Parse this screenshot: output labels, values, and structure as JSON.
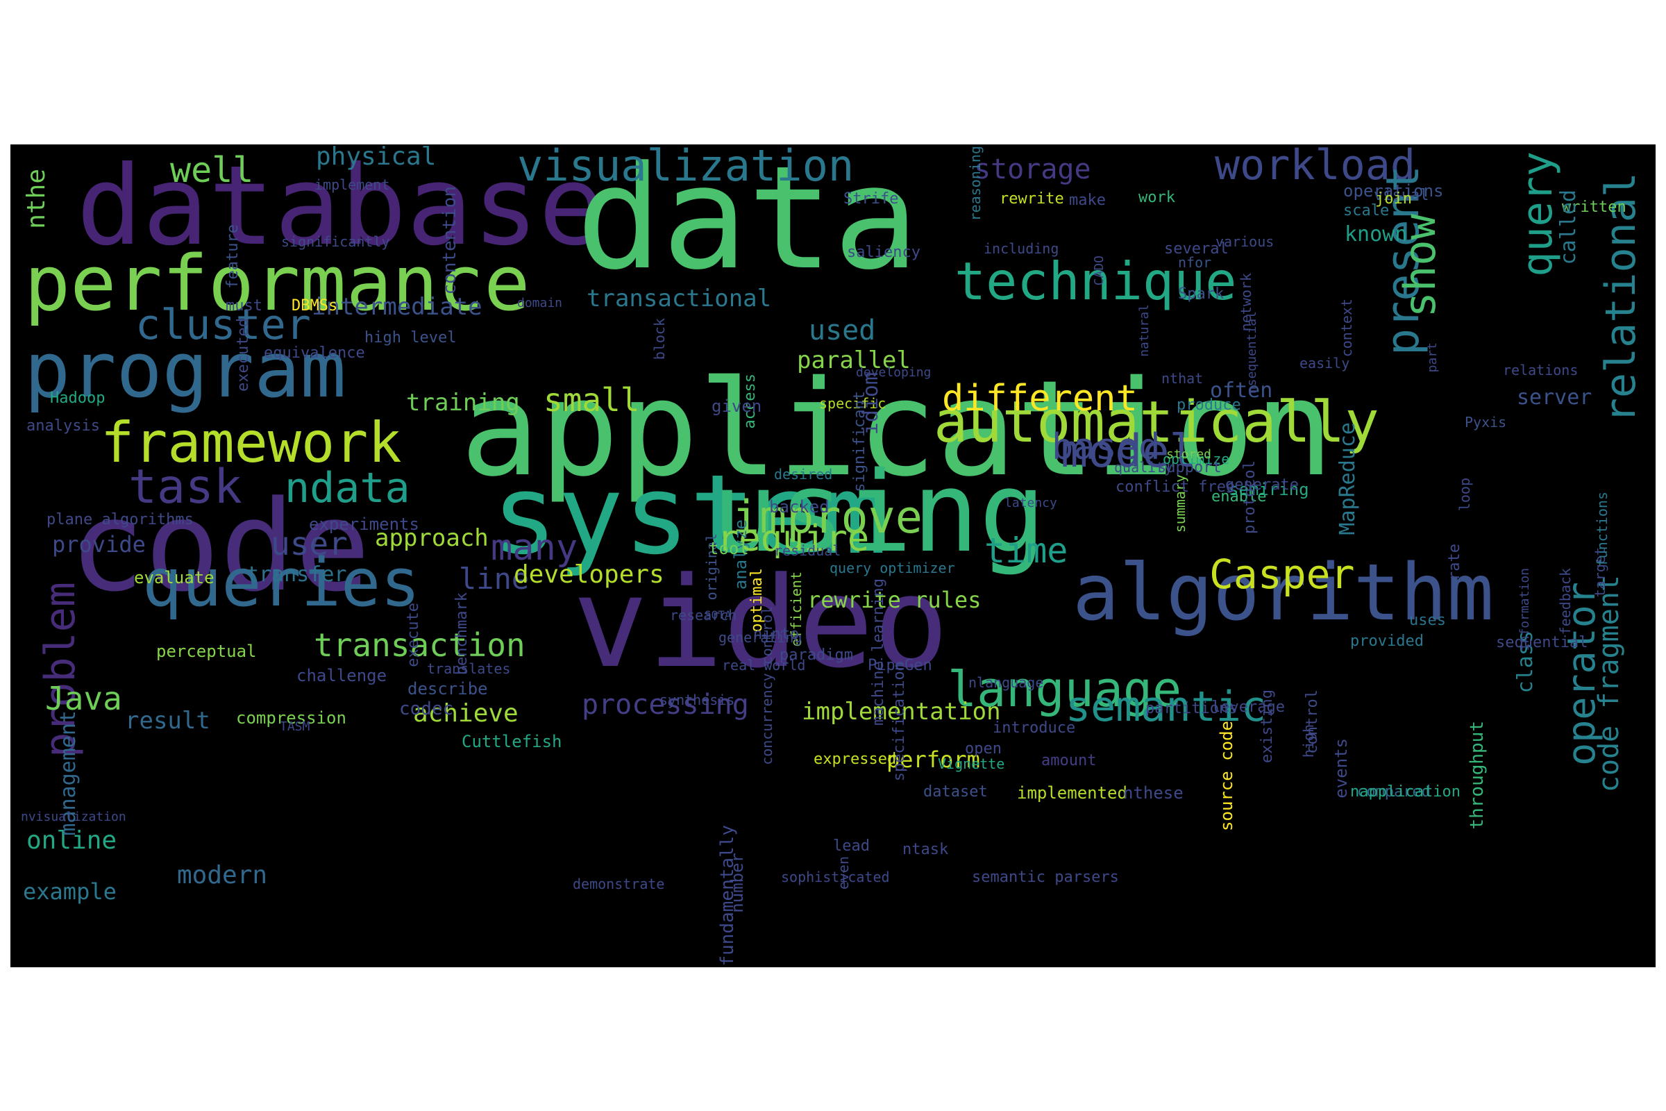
{
  "palette": {
    "dark_purple": "#482475",
    "purple": "#472c7a",
    "indigo": "#3e4989",
    "blue": "#31688e",
    "teal": "#26828e",
    "aqua": "#1f9e89",
    "green": "#35b779",
    "light_green": "#6ece58",
    "lime": "#b5de2b",
    "yellow": "#fde725",
    "background": "#000000"
  },
  "words": [
    {
      "text": "database",
      "color": "#482475"
    },
    {
      "text": "data",
      "color": "#4ac16d"
    },
    {
      "text": "application",
      "color": "#4ac16d"
    },
    {
      "text": "system",
      "color": "#22a884"
    },
    {
      "text": "video",
      "color": "#472c7a"
    },
    {
      "text": "using",
      "color": "#35b779"
    },
    {
      "text": "code",
      "color": "#472c7a"
    },
    {
      "text": "performance",
      "color": "#7ad151"
    },
    {
      "text": "program",
      "color": "#31688e"
    },
    {
      "text": "algorithm",
      "color": "#3b528b"
    },
    {
      "text": "queries",
      "color": "#31688e"
    },
    {
      "text": "automatically",
      "color": "#a0da39"
    },
    {
      "text": "visualization",
      "color": "#2a788e"
    },
    {
      "text": "technique",
      "color": "#22a884"
    },
    {
      "text": "framework",
      "color": "#b5de2b"
    },
    {
      "text": "language",
      "color": "#35b779"
    },
    {
      "text": "improve",
      "color": "#7ad151"
    },
    {
      "text": "workload",
      "color": "#3e4989"
    },
    {
      "text": "cluster",
      "color": "#31688e"
    },
    {
      "text": "task",
      "color": "#443a83"
    },
    {
      "text": "semantic",
      "color": "#21918c"
    },
    {
      "text": "Casper",
      "color": "#c8e020"
    },
    {
      "text": "model",
      "color": "#3e4989"
    },
    {
      "text": "query",
      "color": "#1f9e89"
    },
    {
      "text": "relational",
      "color": "#26828e"
    },
    {
      "text": "present",
      "color": "#2a788e"
    },
    {
      "text": "show",
      "color": "#4ac16d"
    },
    {
      "text": "ndata",
      "color": "#1f9e89"
    },
    {
      "text": "problem",
      "color": "#472c7a"
    },
    {
      "text": "operator",
      "color": "#26828e"
    },
    {
      "text": "require",
      "color": "#86d549"
    },
    {
      "text": "different",
      "color": "#fde725"
    },
    {
      "text": "based",
      "color": "#3e4989"
    },
    {
      "text": "many",
      "color": "#443a83"
    },
    {
      "text": "time",
      "color": "#1f9e89"
    },
    {
      "text": "well",
      "color": "#6ece58"
    },
    {
      "text": "transaction",
      "color": "#6ece58"
    },
    {
      "text": "small",
      "color": "#a0da39"
    },
    {
      "text": "processing",
      "color": "#433e85"
    },
    {
      "text": "storage",
      "color": "#443a83"
    },
    {
      "text": "user",
      "color": "#3e4989"
    },
    {
      "text": "Java",
      "color": "#6ece58"
    },
    {
      "text": "line",
      "color": "#3e4989"
    },
    {
      "text": "code fragment",
      "color": "#26828e"
    },
    {
      "text": "used",
      "color": "#2a788e"
    },
    {
      "text": "physical",
      "color": "#2a788e"
    },
    {
      "text": "intermediate",
      "color": "#3b528b"
    },
    {
      "text": "transactional",
      "color": "#2a788e"
    },
    {
      "text": "parallel",
      "color": "#86d549"
    },
    {
      "text": "training",
      "color": "#6ece58"
    },
    {
      "text": "developers",
      "color": "#b5de2b"
    },
    {
      "text": "approach",
      "color": "#a0da39"
    },
    {
      "text": "rewrite rules",
      "color": "#86d549"
    },
    {
      "text": "perform",
      "color": "#c8e020"
    },
    {
      "text": "implementation",
      "color": "#a0da39"
    },
    {
      "text": "achieve",
      "color": "#a0da39"
    },
    {
      "text": "online",
      "color": "#22a884"
    },
    {
      "text": "modern",
      "color": "#31688e"
    },
    {
      "text": "example",
      "color": "#2a788e"
    },
    {
      "text": "result",
      "color": "#31688e"
    },
    {
      "text": "provide",
      "color": "#3e4989"
    },
    {
      "text": "transfer",
      "color": "#2c728e"
    },
    {
      "text": "management",
      "color": "#31688e"
    },
    {
      "text": "known",
      "color": "#1f9e89"
    },
    {
      "text": "often",
      "color": "#3b528b"
    },
    {
      "text": "server",
      "color": "#3b528b"
    },
    {
      "text": "MapReduce",
      "color": "#2a788e"
    },
    {
      "text": "class",
      "color": "#26828e"
    },
    {
      "text": "throughput",
      "color": "#35b779"
    },
    {
      "text": "nthe",
      "color": "#6ece58"
    },
    {
      "text": "experiments",
      "color": "#3e4989"
    },
    {
      "text": "plane algorithms",
      "color": "#3e4989"
    },
    {
      "text": "analysis",
      "color": "#3e4989"
    },
    {
      "text": "Hadoop",
      "color": "#22a884"
    },
    {
      "text": "evaluate",
      "color": "#a0da39"
    },
    {
      "text": "perceptual",
      "color": "#86d549"
    },
    {
      "text": "challenge",
      "color": "#3e4989"
    },
    {
      "text": "compression",
      "color": "#7ad151"
    },
    {
      "text": "Cuttlefish",
      "color": "#22a884"
    },
    {
      "text": "TASM",
      "color": "#3e4989"
    },
    {
      "text": "describe",
      "color": "#3b528b"
    },
    {
      "text": "leverage",
      "color": "#3e4989"
    },
    {
      "text": "partitions",
      "color": "#3e4989"
    },
    {
      "text": "expressed",
      "color": "#c8e020"
    },
    {
      "text": "implemented",
      "color": "#b5de2b"
    },
    {
      "text": "dataset",
      "color": "#3b528b"
    },
    {
      "text": "amount",
      "color": "#433e85"
    },
    {
      "text": "Vignette",
      "color": "#22a884"
    },
    {
      "text": "nthese",
      "color": "#3e4989"
    },
    {
      "text": "compared",
      "color": "#31688e"
    },
    {
      "text": "napplication",
      "color": "#22a884"
    },
    {
      "text": "provided",
      "color": "#2a788e"
    },
    {
      "text": "uses",
      "color": "#2c728e"
    },
    {
      "text": "sequential",
      "color": "#3e4989"
    },
    {
      "text": "information",
      "color": "#3e4989"
    },
    {
      "text": "feedback",
      "color": "#3e4989"
    },
    {
      "text": "target",
      "color": "#3e4989"
    },
    {
      "text": "functions",
      "color": "#2a788e"
    },
    {
      "text": "written",
      "color": "#6ece58"
    },
    {
      "text": "called",
      "color": "#2a788e"
    },
    {
      "text": "operations",
      "color": "#3b528b"
    },
    {
      "text": "scale",
      "color": "#2a788e"
    },
    {
      "text": "visual",
      "color": "#3b528b"
    },
    {
      "text": "join",
      "color": "#b5de2b"
    },
    {
      "text": "work",
      "color": "#35b779"
    },
    {
      "text": "make",
      "color": "#3e4989"
    },
    {
      "text": "rewrite",
      "color": "#c8e020"
    },
    {
      "text": "Strife",
      "color": "#3b528b"
    },
    {
      "text": "several",
      "color": "#3e4989"
    },
    {
      "text": "various",
      "color": "#3e4989"
    },
    {
      "text": "nfor",
      "color": "#3b528b"
    },
    {
      "text": "Spark",
      "color": "#3b528b"
    },
    {
      "text": "easily",
      "color": "#3e4989"
    },
    {
      "text": "relations",
      "color": "#3e4989"
    },
    {
      "text": "Pyxis",
      "color": "#3b528b"
    },
    {
      "text": "enable",
      "color": "#35b779"
    },
    {
      "text": "semiring",
      "color": "#22a884"
    },
    {
      "text": "generate",
      "color": "#3e4989"
    },
    {
      "text": "summary",
      "color": "#7ad151"
    },
    {
      "text": "loop",
      "color": "#3e4989"
    },
    {
      "text": "protocol",
      "color": "#3e4989"
    },
    {
      "text": "optimize",
      "color": "#22a884"
    },
    {
      "text": "support",
      "color": "#3e4989"
    },
    {
      "text": "conflict free",
      "color": "#3e4989"
    },
    {
      "text": "quality",
      "color": "#3e4989"
    },
    {
      "text": "stored",
      "color": "#7ad151"
    },
    {
      "text": "produce",
      "color": "#2a788e"
    },
    {
      "text": "nthat",
      "color": "#3e4989"
    },
    {
      "text": "specific",
      "color": "#b5de2b"
    },
    {
      "text": "desired",
      "color": "#2a788e"
    },
    {
      "text": "significant",
      "color": "#3b528b"
    },
    {
      "text": "access",
      "color": "#35b779"
    },
    {
      "text": "analyze",
      "color": "#2a788e"
    },
    {
      "text": "original",
      "color": "#3b528b"
    },
    {
      "text": "SOTA",
      "color": "#3e4989"
    },
    {
      "text": "residual",
      "color": "#3e4989"
    },
    {
      "text": "query optimizer",
      "color": "#2a788e"
    },
    {
      "text": "efficient",
      "color": "#86d549"
    },
    {
      "text": "optimal",
      "color": "#fde725"
    },
    {
      "text": "developing",
      "color": "#3e4989"
    },
    {
      "text": "domain",
      "color": "#3e4989"
    },
    {
      "text": "given",
      "color": "#3e4989"
    },
    {
      "text": "idiom",
      "color": "#3e4989"
    },
    {
      "text": "backed",
      "color": "#3e4989"
    },
    {
      "text": "tool",
      "color": "#6ece58"
    },
    {
      "text": "high level",
      "color": "#3b528b"
    },
    {
      "text": "must",
      "color": "#3e4989"
    },
    {
      "text": "DBMSs",
      "color": "#fde725"
    },
    {
      "text": "feature",
      "color": "#3b528b"
    },
    {
      "text": "executed",
      "color": "#3e4989"
    },
    {
      "text": "equivalence",
      "color": "#3e4989"
    },
    {
      "text": "significantly",
      "color": "#3e4989"
    },
    {
      "text": "implement",
      "color": "#3e4989"
    },
    {
      "text": "contention",
      "color": "#3e4989"
    },
    {
      "text": "reasoning",
      "color": "#2a788e"
    },
    {
      "text": "saliency",
      "color": "#3e4989"
    },
    {
      "text": "including",
      "color": "#3e4989"
    },
    {
      "text": "block",
      "color": "#3e4989"
    },
    {
      "text": "CADO",
      "color": "#3e4989"
    },
    {
      "text": "natural",
      "color": "#3e4989"
    },
    {
      "text": "context",
      "color": "#3e4989"
    },
    {
      "text": "network",
      "color": "#3e4989"
    },
    {
      "text": "nsequential",
      "color": "#3e4989"
    },
    {
      "text": "part",
      "color": "#3e4989"
    },
    {
      "text": "rate",
      "color": "#3e4989"
    },
    {
      "text": "control",
      "color": "#3e4989"
    },
    {
      "text": "existing",
      "color": "#3e4989"
    },
    {
      "text": "source code",
      "color": "#fde725"
    },
    {
      "text": "high",
      "color": "#3e4989"
    },
    {
      "text": "events",
      "color": "#3e4989"
    },
    {
      "text": "research",
      "color": "#3e4989"
    },
    {
      "text": "generating",
      "color": "#3e4989"
    },
    {
      "text": "synthesis",
      "color": "#3e4989"
    },
    {
      "text": "translates",
      "color": "#3e4989"
    },
    {
      "text": "ninto",
      "color": "#3e4989"
    },
    {
      "text": "paradigm",
      "color": "#3e4989"
    },
    {
      "text": "codec",
      "color": "#3e4989"
    },
    {
      "text": "open",
      "color": "#3e4989"
    },
    {
      "text": "PipeGen",
      "color": "#3e4989"
    },
    {
      "text": "introduce",
      "color": "#3e4989"
    },
    {
      "text": "nlanguage",
      "color": "#3e4989"
    },
    {
      "text": "benchmark",
      "color": "#3e4989"
    },
    {
      "text": "machine learning",
      "color": "#3e4989"
    },
    {
      "text": "specification",
      "color": "#3e4989"
    },
    {
      "text": "real world",
      "color": "#3e4989"
    },
    {
      "text": "execute",
      "color": "#3e4989"
    },
    {
      "text": "nvisualization",
      "color": "#3e4989"
    },
    {
      "text": "lead",
      "color": "#3e4989"
    },
    {
      "text": "ntask",
      "color": "#3e4989"
    },
    {
      "text": "concurrency control",
      "color": "#3e4989"
    },
    {
      "text": "semantic parsers",
      "color": "#3e4989"
    },
    {
      "text": "sophisticated",
      "color": "#3e4989"
    },
    {
      "text": "demonstrate",
      "color": "#3e4989"
    },
    {
      "text": "even",
      "color": "#3e4989"
    },
    {
      "text": "number",
      "color": "#3e4989"
    },
    {
      "text": "fundamentally",
      "color": "#3e4989"
    },
    {
      "text": "latency",
      "color": "#3e4989"
    }
  ]
}
